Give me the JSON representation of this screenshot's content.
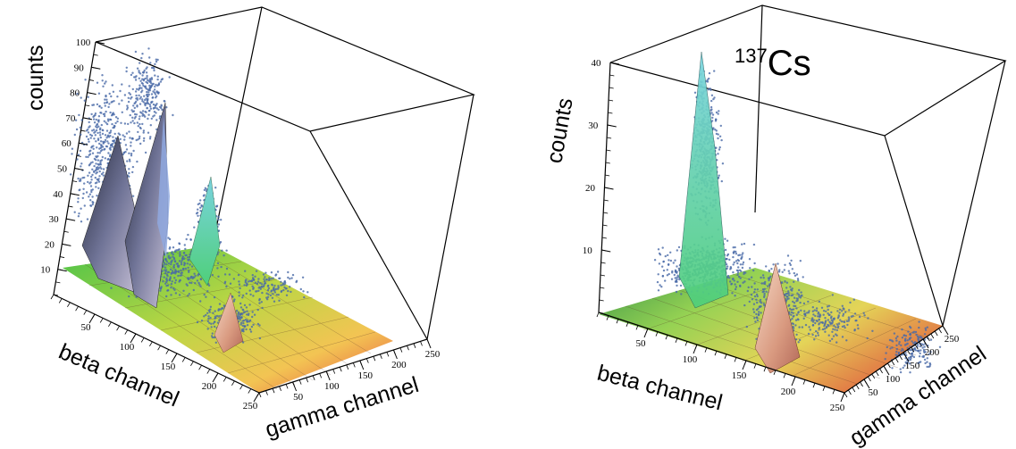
{
  "chart_data": [
    {
      "type": "surface3d",
      "title": "",
      "zlabel": "counts",
      "xlabel": "beta channel",
      "ylabel": "gamma channel",
      "zlim": [
        0,
        100
      ],
      "xlim": [
        0,
        250
      ],
      "ylim": [
        0,
        250
      ],
      "z_ticks": [
        10,
        20,
        30,
        40,
        50,
        60,
        70,
        80,
        90,
        100
      ],
      "x_ticks": [
        50,
        100,
        150,
        200,
        250
      ],
      "y_ticks": [
        50,
        100,
        150,
        200,
        250
      ],
      "peaks": [
        {
          "beta": 20,
          "gamma": 15,
          "counts": 62
        },
        {
          "beta": 40,
          "gamma": 40,
          "counts": 85
        },
        {
          "beta": 110,
          "gamma": 70,
          "counts": 45
        },
        {
          "beta": 150,
          "gamma": 110,
          "counts": 10
        }
      ]
    },
    {
      "type": "surface3d",
      "title_mass": "137",
      "title_element": "Cs",
      "zlabel": "counts",
      "xlabel": "beta channel",
      "ylabel": "gamma channel",
      "zlim": [
        0,
        40
      ],
      "xlim": [
        0,
        250
      ],
      "ylim": [
        0,
        250
      ],
      "z_ticks": [
        10,
        20,
        30,
        40
      ],
      "x_ticks": [
        50,
        100,
        150,
        200,
        250
      ],
      "y_ticks": [
        50,
        100,
        150,
        200,
        250
      ],
      "peaks": [
        {
          "beta": 55,
          "gamma": 25,
          "counts": 40
        },
        {
          "beta": 170,
          "gamma": 120,
          "counts": 12
        }
      ]
    }
  ]
}
